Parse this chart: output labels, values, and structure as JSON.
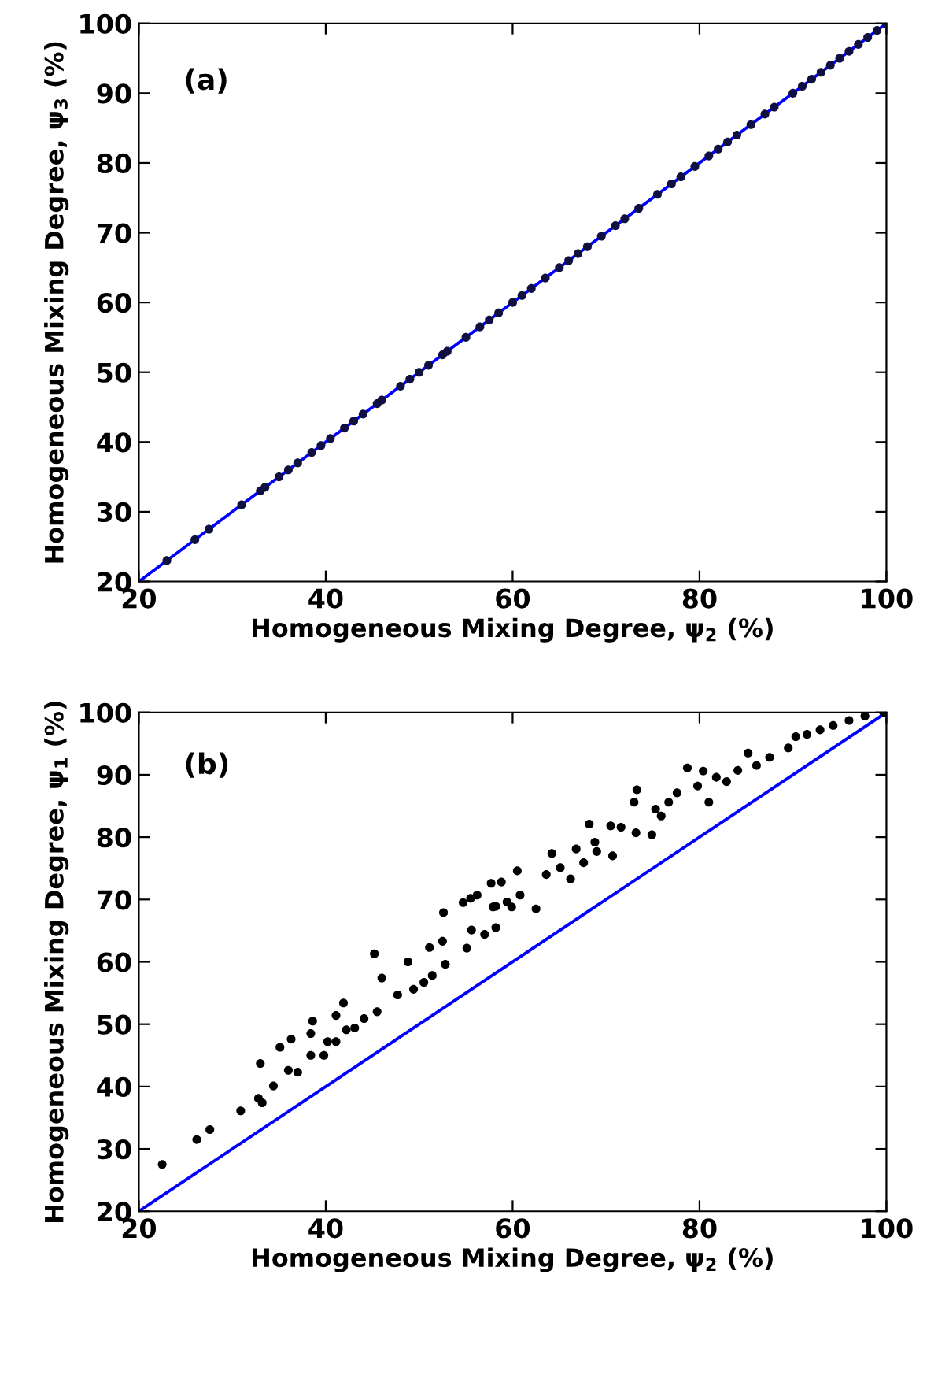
{
  "chart_data": [
    {
      "type": "scatter",
      "xlabel": "Homogeneous Mixing Degree, ψ$_{2}$ (%)",
      "ylabel": "Homogeneous Mixing Degree, ψ$_{3}$ (%)",
      "annotations": [
        "(a)"
      ],
      "xlim": [
        20,
        100
      ],
      "ylim": [
        20,
        100
      ],
      "xticks": [
        20,
        40,
        60,
        80,
        100
      ],
      "yticks": [
        20,
        30,
        40,
        50,
        60,
        70,
        80,
        90,
        100
      ],
      "grid": false,
      "series": [
        {
          "marker": "circle",
          "color": "#101040",
          "x": [
            23,
            26,
            27.5,
            31,
            33,
            33.5,
            35,
            36,
            37,
            38.5,
            39.5,
            40.5,
            42,
            43,
            44,
            45.5,
            46,
            48,
            49,
            50,
            51,
            52.5,
            53,
            55,
            56.5,
            57.5,
            58.5,
            60,
            61,
            62,
            63.5,
            65,
            66,
            67,
            68,
            69.5,
            71,
            72,
            73.5,
            75.5,
            77,
            78,
            79.5,
            81,
            82,
            83,
            84,
            85.5,
            87,
            88,
            90,
            91,
            92,
            93,
            94,
            95,
            96,
            97,
            98,
            99,
            100
          ],
          "values": [
            23,
            26,
            27.5,
            31,
            33,
            33.5,
            35,
            36,
            37,
            38.5,
            39.5,
            40.5,
            42,
            43,
            44,
            45.5,
            46,
            48,
            49,
            50,
            51,
            52.5,
            53,
            55,
            56.5,
            57.5,
            58.5,
            60,
            61,
            62,
            63.5,
            65,
            66,
            67,
            68,
            69.5,
            71,
            72,
            73.5,
            75.5,
            77,
            78,
            79.5,
            81,
            82,
            83,
            84,
            85.5,
            87,
            88,
            90,
            91,
            92,
            93,
            94,
            95,
            96,
            97,
            98,
            99,
            100
          ]
        },
        {
          "type": "line",
          "color": "#0000ff",
          "line_style": "solid",
          "x": [
            20,
            100
          ],
          "values": [
            20,
            100
          ]
        }
      ]
    },
    {
      "type": "scatter",
      "xlabel": "Homogeneous Mixing Degree, ψ$_{2}$ (%)",
      "ylabel": "Homogeneous Mixing Degree, ψ$_{1}$ (%)",
      "annotations": [
        "(b)"
      ],
      "xlim": [
        20,
        100
      ],
      "ylim": [
        20,
        100
      ],
      "xticks": [
        20,
        40,
        60,
        80,
        100
      ],
      "yticks": [
        20,
        30,
        40,
        50,
        60,
        70,
        80,
        90,
        100
      ],
      "grid": false,
      "series": [
        {
          "marker": "circle",
          "color": "#000000",
          "x": [
            22.5,
            26.2,
            27.6,
            30.9,
            32.8,
            33.2,
            33.0,
            34.4,
            35.1,
            36.3,
            36.0,
            37.0,
            38.4,
            38.6,
            38.4,
            39.8,
            40.2,
            41.1,
            41.1,
            41.9,
            42.2,
            43.1,
            44.1,
            45.2,
            46.0,
            45.5,
            47.7,
            48.8,
            49.4,
            50.5,
            51.4,
            51.1,
            52.5,
            52.8,
            52.6,
            54.7,
            55.5,
            55.1,
            55.6,
            57.0,
            58.2,
            57.9,
            58.8,
            59.9,
            60.5,
            56.2,
            57.7,
            58.2,
            59.4,
            60.8,
            62.5,
            63.6,
            64.2,
            65.1,
            66.2,
            66.8,
            67.6,
            68.2,
            68.8,
            69.0,
            70.7,
            70.5,
            71.6,
            73.2,
            73.0,
            73.3,
            74.9,
            75.3,
            75.9,
            76.7,
            77.6,
            78.7,
            80.4,
            79.8,
            81.0,
            81.8,
            82.9,
            84.1,
            85.2,
            86.1,
            87.5,
            89.5,
            90.3,
            91.5,
            92.9,
            94.3,
            96.0,
            97.7,
            99.7
          ],
          "values": [
            27.5,
            31.5,
            33.1,
            36.1,
            38.1,
            37.4,
            43.7,
            40.1,
            46.3,
            47.6,
            42.6,
            42.3,
            48.5,
            50.5,
            45.0,
            45.0,
            47.2,
            47.2,
            51.4,
            53.4,
            49.1,
            49.4,
            50.9,
            61.3,
            57.4,
            52.0,
            54.7,
            60.0,
            55.6,
            56.7,
            57.8,
            62.3,
            63.3,
            59.6,
            67.9,
            69.5,
            70.2,
            62.2,
            65.1,
            64.4,
            65.5,
            68.8,
            72.8,
            68.8,
            74.6,
            70.7,
            72.6,
            68.9,
            69.6,
            70.7,
            68.5,
            74.0,
            77.4,
            75.1,
            73.3,
            78.1,
            75.9,
            82.1,
            79.2,
            77.7,
            77.0,
            81.8,
            81.6,
            80.7,
            85.6,
            87.6,
            80.4,
            84.5,
            83.4,
            85.6,
            87.1,
            91.1,
            90.6,
            88.2,
            85.6,
            89.6,
            88.9,
            90.7,
            93.5,
            91.5,
            92.8,
            94.3,
            96.1,
            96.5,
            97.2,
            97.9,
            98.7,
            99.4,
            100
          ]
        },
        {
          "type": "line",
          "color": "#0000ff",
          "line_style": "solid",
          "x": [
            20,
            100
          ],
          "values": [
            20,
            100
          ]
        }
      ]
    }
  ]
}
